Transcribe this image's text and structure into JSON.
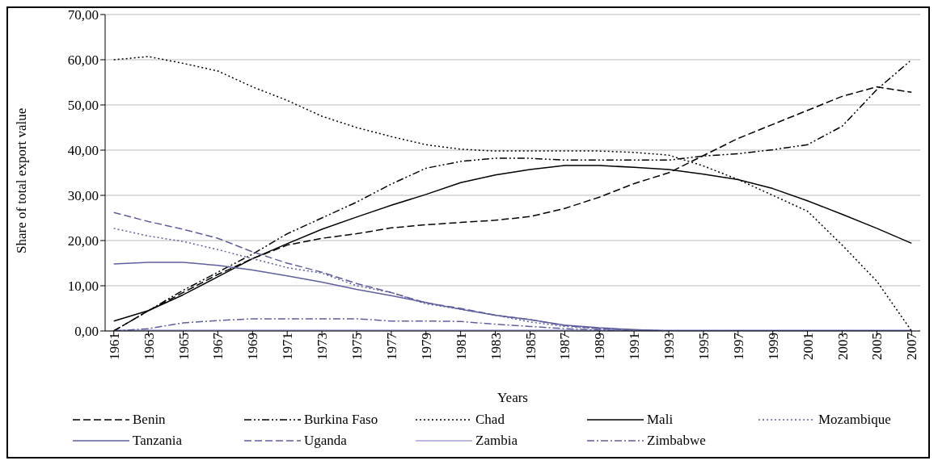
{
  "chart_data": {
    "type": "line",
    "xlabel": "Years",
    "ylabel": "Share of total export value",
    "x": [
      1961,
      1963,
      1965,
      1967,
      1969,
      1971,
      1973,
      1975,
      1977,
      1979,
      1981,
      1983,
      1985,
      1987,
      1989,
      1991,
      1993,
      1995,
      1997,
      1999,
      2001,
      2003,
      2005,
      2007
    ],
    "xlim": [
      1960.5,
      2007.5
    ],
    "xticks": [
      1961,
      1963,
      1965,
      1967,
      1969,
      1971,
      1973,
      1975,
      1977,
      1979,
      1981,
      1983,
      1985,
      1987,
      1989,
      1991,
      1993,
      1995,
      1997,
      1999,
      2001,
      2003,
      2005,
      2007
    ],
    "ylim": [
      0,
      70
    ],
    "yticks": [
      {
        "value": 0,
        "label": "0,00"
      },
      {
        "value": 10,
        "label": "10,00"
      },
      {
        "value": 20,
        "label": "20,00"
      },
      {
        "value": 30,
        "label": "30,00"
      },
      {
        "value": 40,
        "label": "40,00"
      },
      {
        "value": 50,
        "label": "50,00"
      },
      {
        "value": 60,
        "label": "60,00"
      },
      {
        "value": 70,
        "label": "70,00"
      }
    ],
    "grid": "y",
    "legend": "bottom",
    "marker": "none",
    "series": [
      {
        "name": "Benin",
        "color": "#000000",
        "line_style": "dashed",
        "values": [
          0,
          4.5,
          8.5,
          12.5,
          16,
          19,
          20.5,
          21.5,
          22.8,
          23.5,
          24,
          24.5,
          25.3,
          27.1,
          29.6,
          32.6,
          35,
          38.8,
          42.6,
          45.7,
          48.8,
          51.9,
          54,
          52.8
        ]
      },
      {
        "name": "Burkina Faso",
        "color": "#000000",
        "line_style": "dashdotdot",
        "values": [
          0,
          4.5,
          9,
          13,
          17,
          21.5,
          25,
          28.5,
          32.5,
          36,
          37.5,
          38.2,
          38.2,
          37.8,
          37.8,
          37.8,
          37.8,
          38.7,
          39.2,
          40.1,
          41.2,
          45.3,
          53.4,
          60
        ]
      },
      {
        "name": "Chad",
        "color": "#000000",
        "line_style": "dotted",
        "values": [
          60,
          60.7,
          59.2,
          57.5,
          54,
          51,
          47.5,
          45,
          43,
          41.2,
          40.2,
          39.8,
          39.8,
          39.8,
          39.8,
          39.5,
          38.9,
          36.5,
          33.5,
          30,
          26.5,
          19,
          11,
          0
        ]
      },
      {
        "name": "Mali",
        "color": "#000000",
        "line_style": "solid",
        "values": [
          2.2,
          4.5,
          8,
          12,
          16,
          19.3,
          22.5,
          25.2,
          27.8,
          30.2,
          32.8,
          34.5,
          35.7,
          36.6,
          36.6,
          36.2,
          35.7,
          34.7,
          33.5,
          31.5,
          28.8,
          25.8,
          22.7,
          19.4
        ]
      },
      {
        "name": "Mozambique",
        "color": "#5f5f9f",
        "line_style": "dotted",
        "values": [
          22.7,
          21,
          19.8,
          18,
          16,
          14,
          12.8,
          10,
          8.5,
          6,
          4.8,
          3.5,
          2,
          1,
          0.5,
          0.2,
          0,
          0,
          0,
          0,
          0,
          0,
          0,
          0
        ]
      },
      {
        "name": "Tanzania",
        "color": "#5f5f9f",
        "line_style": "solid",
        "values": [
          14.8,
          15.2,
          15.2,
          14.5,
          13.5,
          12.2,
          10.8,
          9.2,
          7.8,
          6.3,
          4.8,
          3.5,
          2.5,
          1.3,
          0.7,
          0.3,
          0,
          0,
          0,
          0,
          0,
          0,
          0,
          0
        ]
      },
      {
        "name": "Uganda",
        "color": "#5f5f9f",
        "line_style": "dashed",
        "values": [
          26.2,
          24.2,
          22.5,
          20.5,
          17.5,
          15,
          13,
          10.5,
          8.5,
          6.2,
          5,
          3.5,
          2.5,
          1.2,
          0.5,
          0.2,
          0,
          0,
          0,
          0,
          0,
          0,
          0,
          0
        ]
      },
      {
        "name": "Zambia",
        "color": "#a3a3d3",
        "line_style": "solid",
        "values": [
          0,
          0,
          0,
          0,
          0,
          0,
          0,
          0,
          0,
          0,
          0,
          0,
          0,
          0,
          0,
          0,
          0,
          0,
          0,
          0,
          0,
          0,
          0,
          0
        ]
      },
      {
        "name": "Zimbabwe",
        "color": "#5f5f9f",
        "line_style": "dashdot",
        "values": [
          0,
          0.5,
          1.8,
          2.3,
          2.7,
          2.7,
          2.7,
          2.7,
          2.2,
          2.2,
          2.1,
          1.5,
          1,
          0.5,
          0.2,
          0,
          0,
          0,
          0,
          0,
          0,
          0,
          0,
          0
        ]
      }
    ]
  }
}
